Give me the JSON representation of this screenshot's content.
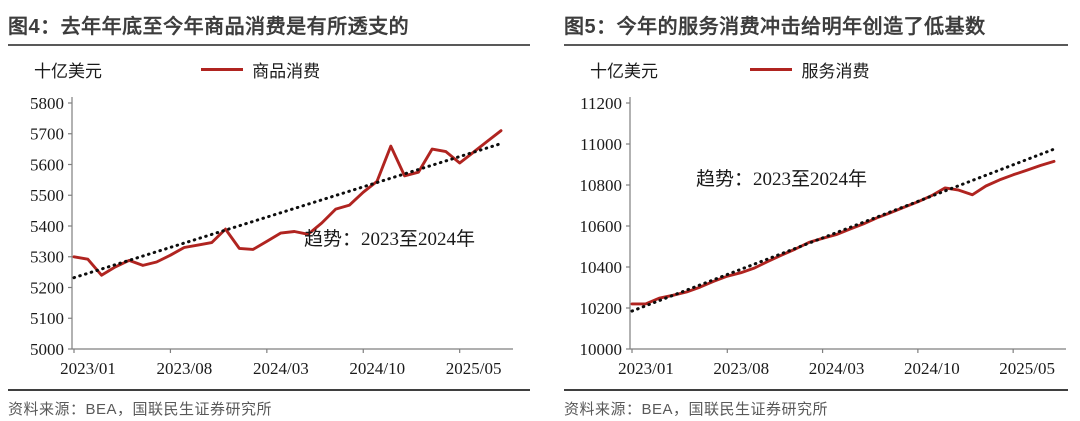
{
  "page": {
    "background": "#ffffff",
    "accent_red": "#b02420",
    "trend_black": "#0d0d0d"
  },
  "panels": [
    {
      "title": "图4：去年年底至今年商品消费是有所透支的",
      "unit_label": "十亿美元",
      "legend": {
        "label": "商品消费",
        "color": "#b02420"
      },
      "annotation": "趋势：2023至2024年",
      "source": "资料来源：BEA，国联民生证券研究所",
      "chart_data": {
        "type": "line",
        "title": "图4：去年年底至今年商品消费是有所透支的",
        "ylabel": "十亿美元",
        "ylim": [
          5000,
          5800
        ],
        "ystep": 100,
        "grid": false,
        "legend_position": "top",
        "x": [
          "2023/01",
          "2023/02",
          "2023/03",
          "2023/04",
          "2023/05",
          "2023/06",
          "2023/07",
          "2023/08",
          "2023/09",
          "2023/10",
          "2023/11",
          "2023/12",
          "2024/01",
          "2024/02",
          "2024/03",
          "2024/04",
          "2024/05",
          "2024/06",
          "2024/07",
          "2024/08",
          "2024/09",
          "2024/10",
          "2024/11",
          "2024/12",
          "2025/01",
          "2025/02",
          "2025/03",
          "2025/04",
          "2025/05",
          "2025/06",
          "2025/07",
          "2025/08"
        ],
        "x_tick_indices": [
          0,
          7,
          14,
          21,
          28
        ],
        "x_tick_labels": [
          "2023/01",
          "2023/08",
          "2024/03",
          "2024/10",
          "2025/05"
        ],
        "series": [
          {
            "name": "商品消费",
            "style": "solid",
            "color": "#b02420",
            "values": [
              5300,
              5292,
              5240,
              5267,
              5288,
              5272,
              5283,
              5305,
              5330,
              5338,
              5346,
              5390,
              5327,
              5324,
              5350,
              5377,
              5382,
              5373,
              5410,
              5455,
              5468,
              5510,
              5545,
              5660,
              5563,
              5575,
              5650,
              5642,
              5605,
              5640,
              5675,
              5710
            ]
          },
          {
            "name": "趋势：2023至2024年",
            "style": "dotted-linear",
            "color": "#0d0d0d",
            "start": 5232,
            "end": 5668
          }
        ]
      }
    },
    {
      "title": "图5：今年的服务消费冲击给明年创造了低基数",
      "unit_label": "十亿美元",
      "legend": {
        "label": "服务消费",
        "color": "#b02420"
      },
      "annotation": "趋势：2023至2024年",
      "source": "资料来源：BEA，国联民生证券研究所",
      "chart_data": {
        "type": "line",
        "title": "图5：今年的服务消费冲击给明年创造了低基数",
        "ylabel": "十亿美元",
        "ylim": [
          10000,
          11200
        ],
        "ystep": 200,
        "grid": false,
        "legend_position": "top",
        "x": [
          "2023/01",
          "2023/02",
          "2023/03",
          "2023/04",
          "2023/05",
          "2023/06",
          "2023/07",
          "2023/08",
          "2023/09",
          "2023/10",
          "2023/11",
          "2023/12",
          "2024/01",
          "2024/02",
          "2024/03",
          "2024/04",
          "2024/05",
          "2024/06",
          "2024/07",
          "2024/08",
          "2024/09",
          "2024/10",
          "2024/11",
          "2024/12",
          "2025/01",
          "2025/02",
          "2025/03",
          "2025/04",
          "2025/05",
          "2025/06",
          "2025/07",
          "2025/08"
        ],
        "x_tick_indices": [
          0,
          7,
          14,
          21,
          28
        ],
        "x_tick_labels": [
          "2023/01",
          "2023/08",
          "2024/03",
          "2024/10",
          "2025/05"
        ],
        "series": [
          {
            "name": "服务消费",
            "style": "solid",
            "color": "#b02420",
            "values": [
              10220,
              10220,
              10248,
              10262,
              10278,
              10302,
              10330,
              10355,
              10372,
              10395,
              10428,
              10458,
              10488,
              10520,
              10540,
              10558,
              10585,
              10610,
              10640,
              10665,
              10692,
              10718,
              10748,
              10786,
              10775,
              10752,
              10795,
              10825,
              10850,
              10872,
              10895,
              10915
            ]
          },
          {
            "name": "趋势：2023至2024年",
            "style": "dotted-linear",
            "color": "#0d0d0d",
            "start": 10185,
            "end": 10975
          }
        ]
      }
    }
  ]
}
